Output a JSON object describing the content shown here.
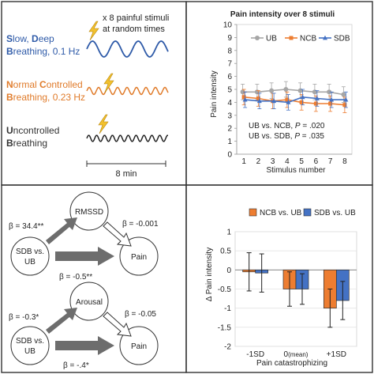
{
  "colors": {
    "slow": "#2e5aa8",
    "normal": "#e07b2a",
    "uncontrolled": "#333333",
    "ub": "#a6a6a6",
    "ncb": "#ed7d31",
    "sdb": "#4472c4",
    "lightning": "#f2c12e"
  },
  "protocol": {
    "stimuli_note_line1": "x 8 painful stimuli",
    "stimuli_note_line2": "at random times",
    "slow_line1": {
      "b1": "S",
      "t1": "low, ",
      "b2": "D",
      "t2": "eep"
    },
    "slow_line2": {
      "b1": "B",
      "t1": "reathing, 0.1 Hz"
    },
    "normal_line1": {
      "b1": "N",
      "t1": "ormal ",
      "b2": "C",
      "t2": "ontrolled"
    },
    "normal_line2": {
      "b1": "B",
      "t1": "reathing, 0.23 Hz"
    },
    "uncontrolled_line1": {
      "b1": "U",
      "t1": "ncontrolled"
    },
    "uncontrolled_line2": {
      "b1": "B",
      "t1": "reathing"
    },
    "duration_label": "8 min",
    "icons": [
      "lightning-icon",
      "lightning-icon",
      "lightning-icon"
    ]
  },
  "chart_data": [
    {
      "type": "line",
      "title": "Pain intensity over 8 stimuli",
      "xlabel": "Stimulus number",
      "ylabel": "Pain intensity",
      "x": [
        1,
        2,
        3,
        4,
        5,
        6,
        7,
        8
      ],
      "ylim": [
        0,
        10
      ],
      "yticks": [
        "0",
        "1",
        "2",
        "3",
        "4",
        "5",
        "6",
        "7",
        "8",
        "9",
        "10"
      ],
      "xticks": [
        "1",
        "2",
        "3",
        "4",
        "5",
        "6",
        "7",
        "8"
      ],
      "legend_position": "top",
      "series": [
        {
          "name": "UB",
          "values": [
            4.8,
            4.8,
            4.9,
            5.0,
            4.9,
            4.8,
            4.8,
            4.6
          ],
          "error": [
            0.6,
            0.6,
            0.6,
            0.6,
            0.6,
            0.6,
            0.6,
            0.6
          ]
        },
        {
          "name": "NCB",
          "values": [
            4.4,
            4.3,
            4.1,
            4.2,
            4.0,
            3.9,
            3.9,
            3.8
          ],
          "error": [
            0.6,
            0.6,
            0.6,
            0.6,
            0.6,
            0.6,
            0.6,
            0.6
          ]
        },
        {
          "name": "SDB",
          "values": [
            4.2,
            4.1,
            4.1,
            4.0,
            4.4,
            4.3,
            4.2,
            4.2
          ],
          "error": [
            0.6,
            0.6,
            0.6,
            0.6,
            0.6,
            0.6,
            0.6,
            0.6
          ]
        }
      ],
      "annotations": [
        {
          "prefix": "UB vs. NCB, ",
          "p_label": "P",
          "suffix": " = .020"
        },
        {
          "prefix": "UB vs. SDB, ",
          "p_label": "P",
          "suffix": " = .035"
        }
      ]
    },
    {
      "type": "bar",
      "title": "",
      "xlabel": "Pain catastrophizing",
      "ylabel": "Δ Pain intensity",
      "categories": [
        {
          "main": "-1SD",
          "sub": ""
        },
        {
          "main": "0",
          "sub": "(mean)"
        },
        {
          "main": "+1SD",
          "sub": ""
        }
      ],
      "ylim": [
        -2,
        1
      ],
      "yticks": [
        "1",
        "0.5",
        "0",
        "-0.5",
        "-1",
        "-1.5",
        "-2"
      ],
      "legend_position": "top",
      "series": [
        {
          "name": "NCB vs. UB",
          "values": [
            -0.05,
            -0.5,
            -1.0
          ],
          "error": [
            0.5,
            0.45,
            0.5
          ]
        },
        {
          "name": "SDB vs. UB",
          "values": [
            -0.08,
            -0.5,
            -0.8
          ],
          "error": [
            0.5,
            0.4,
            0.5
          ]
        }
      ]
    }
  ],
  "mediation": {
    "top": {
      "mediator": "RMSSD",
      "predictor_line1": "SDB vs.",
      "predictor_line2": "UB",
      "outcome": "Pain",
      "a_path": "β = 34.4**",
      "b_path": "β = -0.001",
      "c_path": "β = -0.5**"
    },
    "bottom": {
      "mediator": "Arousal",
      "predictor_line1": "SDB vs.",
      "predictor_line2": "UB",
      "outcome": "Pain",
      "a_path": "β = -0.3*",
      "b_path": "β = -0.05",
      "c_path": "β = -.4*"
    }
  }
}
